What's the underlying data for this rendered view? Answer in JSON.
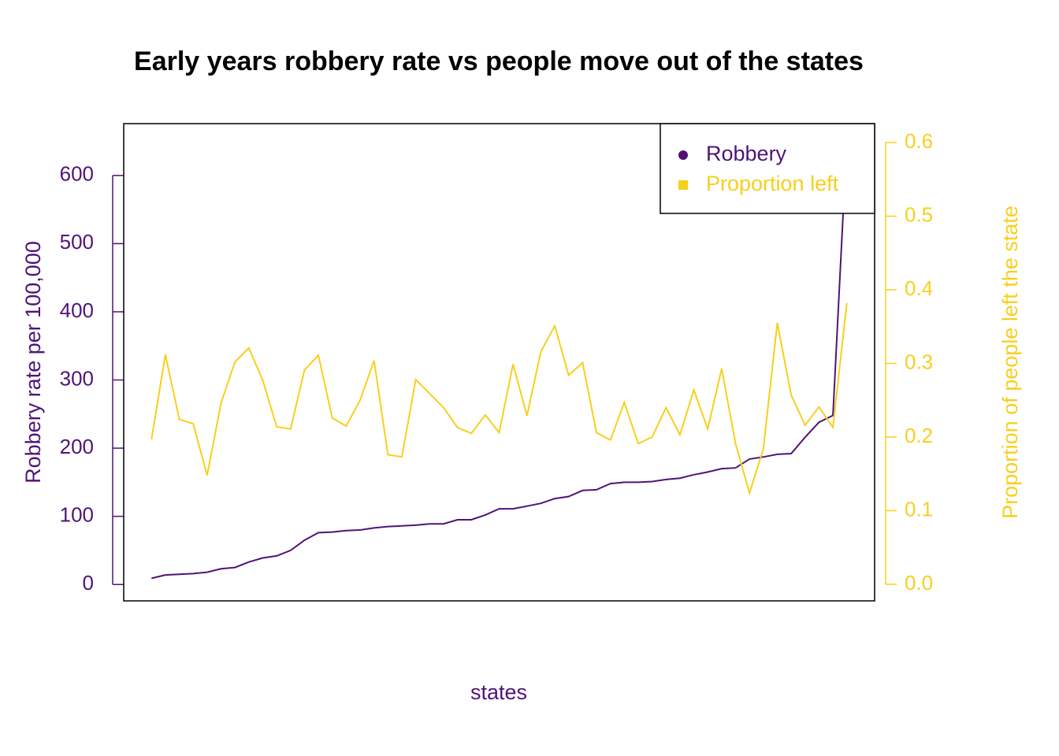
{
  "chart_data": {
    "type": "line",
    "title": "Early years robbery rate vs people move out of the states",
    "x_label": "states",
    "y_label": "Robbery rate per 100,000",
    "y2_label": "Proportion of people left the state",
    "xlim": [
      -1,
      53
    ],
    "ylim": [
      -24,
      676
    ],
    "yticks": [
      0,
      100,
      200,
      300,
      400,
      500,
      600
    ],
    "y2lim": [
      -0.0225,
      0.6257
    ],
    "y2ticks": [
      {
        "value": 0,
        "label": "0.0"
      },
      0.1,
      0.2,
      0.3,
      0.4,
      0.5,
      0.6
    ],
    "legend": "topright",
    "series": [
      {
        "name": "Robbery",
        "color": "#4f1476",
        "marker": "circle",
        "values": [
          9,
          14,
          15,
          16,
          18,
          23,
          25,
          33,
          39,
          42,
          50,
          65,
          76,
          77,
          79,
          80,
          83,
          85,
          86,
          87,
          89,
          89,
          95,
          95,
          102,
          111,
          111,
          115,
          119,
          126,
          129,
          138,
          139,
          148,
          150,
          150,
          151,
          154,
          156,
          161,
          165,
          170,
          171,
          184,
          187,
          191,
          192,
          216,
          238,
          248,
          651
        ]
      },
      {
        "name": "Proportion left",
        "color": "#f8cf1d",
        "marker": "square",
        "axis": "y2",
        "values": [
          0.197,
          0.312,
          0.224,
          0.218,
          0.148,
          0.246,
          0.302,
          0.321,
          0.277,
          0.214,
          0.211,
          0.291,
          0.311,
          0.226,
          0.215,
          0.25,
          0.304,
          0.176,
          0.173,
          0.278,
          0.259,
          0.24,
          0.213,
          0.205,
          0.23,
          0.206,
          0.299,
          0.229,
          0.316,
          0.351,
          0.284,
          0.301,
          0.206,
          0.196,
          0.247,
          0.191,
          0.2,
          0.24,
          0.203,
          0.264,
          0.211,
          0.293,
          0.191,
          0.124,
          0.184,
          0.355,
          0.257,
          0.216,
          0.241,
          0.213,
          0.382
        ]
      }
    ]
  }
}
